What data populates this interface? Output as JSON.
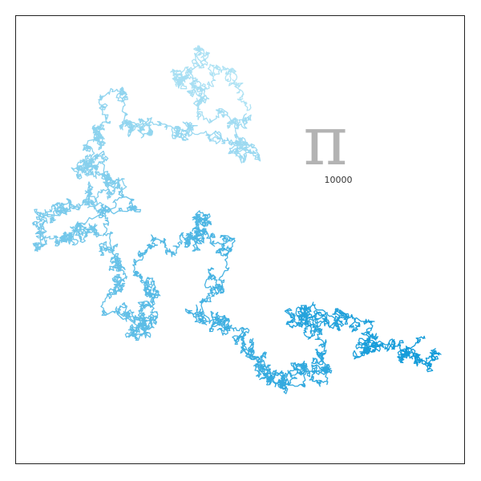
{
  "pi_walk": {
    "symbol": "π",
    "digit_count_label": "10000",
    "steps": 10000,
    "colors": {
      "start": "#b3e4f5",
      "end": "#139bd9",
      "frame": "#222222",
      "symbol": "#b3b3b3"
    }
  }
}
